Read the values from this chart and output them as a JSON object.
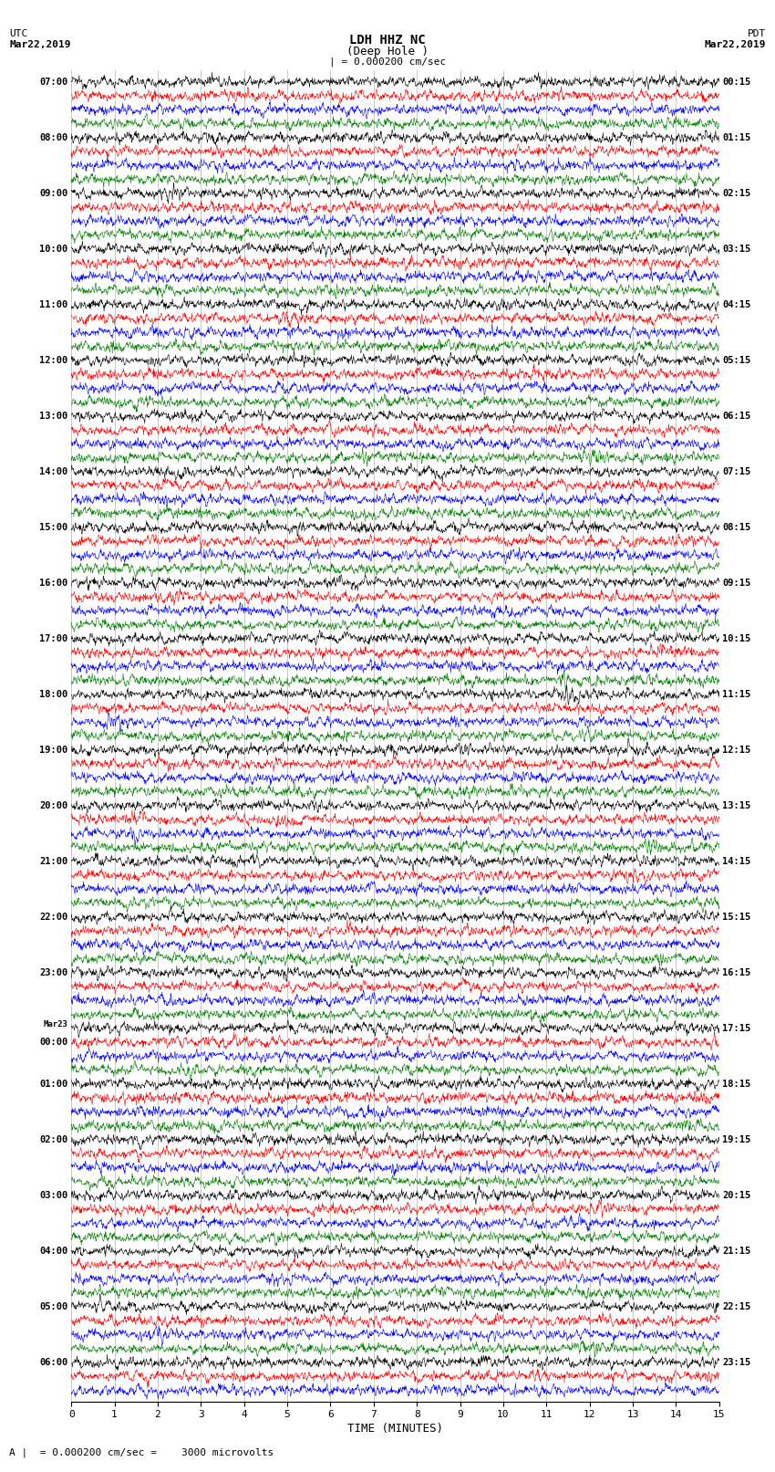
{
  "title_line1": "LDH HHZ NC",
  "title_line2": "(Deep Hole )",
  "title_scale": "| = 0.000200 cm/sec",
  "left_header_line1": "UTC",
  "left_header_line2": "Mar22,2019",
  "right_header_line1": "PDT",
  "right_header_line2": "Mar22,2019",
  "footer_label": "A |  = 0.000200 cm/sec =    3000 microvolts",
  "xlabel": "TIME (MINUTES)",
  "xticks": [
    0,
    1,
    2,
    3,
    4,
    5,
    6,
    7,
    8,
    9,
    10,
    11,
    12,
    13,
    14,
    15
  ],
  "trace_colors": [
    "black",
    "red",
    "blue",
    "green"
  ],
  "background_color": "white",
  "fig_width": 8.5,
  "fig_height": 16.13,
  "dpi": 100,
  "utc_row_labels": [
    [
      "07:00",
      0
    ],
    [
      "08:00",
      4
    ],
    [
      "09:00",
      8
    ],
    [
      "10:00",
      12
    ],
    [
      "11:00",
      16
    ],
    [
      "12:00",
      20
    ],
    [
      "13:00",
      24
    ],
    [
      "14:00",
      28
    ],
    [
      "15:00",
      32
    ],
    [
      "16:00",
      36
    ],
    [
      "17:00",
      40
    ],
    [
      "18:00",
      44
    ],
    [
      "19:00",
      48
    ],
    [
      "20:00",
      52
    ],
    [
      "21:00",
      56
    ],
    [
      "22:00",
      60
    ],
    [
      "23:00",
      64
    ],
    [
      "Mar23",
      68
    ],
    [
      "00:00",
      69
    ],
    [
      "01:00",
      72
    ],
    [
      "02:00",
      76
    ],
    [
      "03:00",
      80
    ],
    [
      "04:00",
      84
    ],
    [
      "05:00",
      88
    ],
    [
      "06:00",
      92
    ]
  ],
  "pdt_row_labels": [
    [
      "00:15",
      0
    ],
    [
      "01:15",
      4
    ],
    [
      "02:15",
      8
    ],
    [
      "03:15",
      12
    ],
    [
      "04:15",
      16
    ],
    [
      "05:15",
      20
    ],
    [
      "06:15",
      24
    ],
    [
      "07:15",
      28
    ],
    [
      "08:15",
      32
    ],
    [
      "09:15",
      36
    ],
    [
      "10:15",
      40
    ],
    [
      "11:15",
      44
    ],
    [
      "12:15",
      48
    ],
    [
      "13:15",
      52
    ],
    [
      "14:15",
      56
    ],
    [
      "15:15",
      60
    ],
    [
      "16:15",
      64
    ],
    [
      "17:15",
      68
    ],
    [
      "18:15",
      72
    ],
    [
      "19:15",
      76
    ],
    [
      "20:15",
      80
    ],
    [
      "21:15",
      84
    ],
    [
      "22:15",
      88
    ],
    [
      "23:15",
      92
    ]
  ],
  "num_rows": 95,
  "minutes": 15,
  "seed": 12345
}
